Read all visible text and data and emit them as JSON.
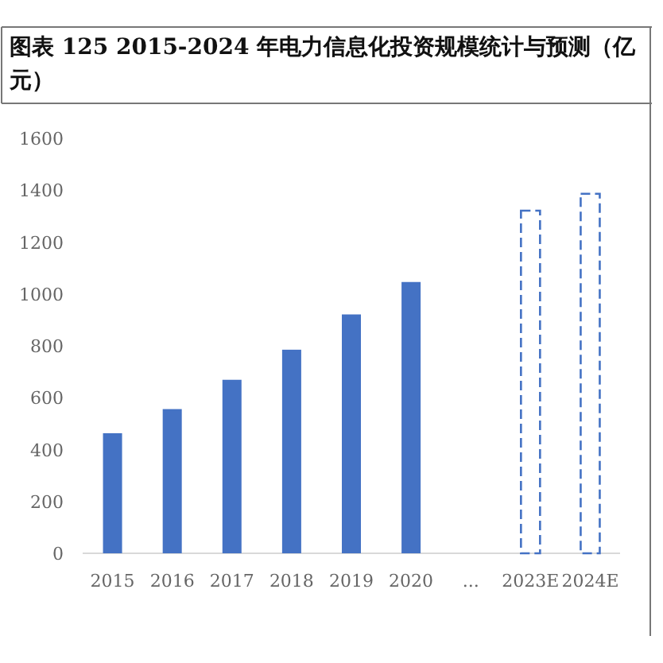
{
  "chart_data": {
    "type": "bar",
    "title": "图表 125 2015-2024  年电力信息化投资规模统计与预测（亿元）",
    "categories": [
      "2015",
      "2016",
      "2017",
      "2018",
      "2019",
      "2020",
      "...",
      "2023E",
      "2024E"
    ],
    "series": [
      {
        "color": "#4472c4",
        "line_style": "solid",
        "values": [
          463,
          556,
          669,
          785,
          921,
          1046,
          null,
          null,
          null
        ]
      },
      {
        "color": "#4472c4",
        "line_style": "dashed",
        "values": [
          null,
          null,
          null,
          null,
          null,
          null,
          null,
          1321,
          1386
        ]
      }
    ],
    "ylim": [
      0,
      1600
    ],
    "yticks": [
      0,
      200,
      400,
      600,
      800,
      1000,
      1200,
      1400,
      1600
    ]
  }
}
